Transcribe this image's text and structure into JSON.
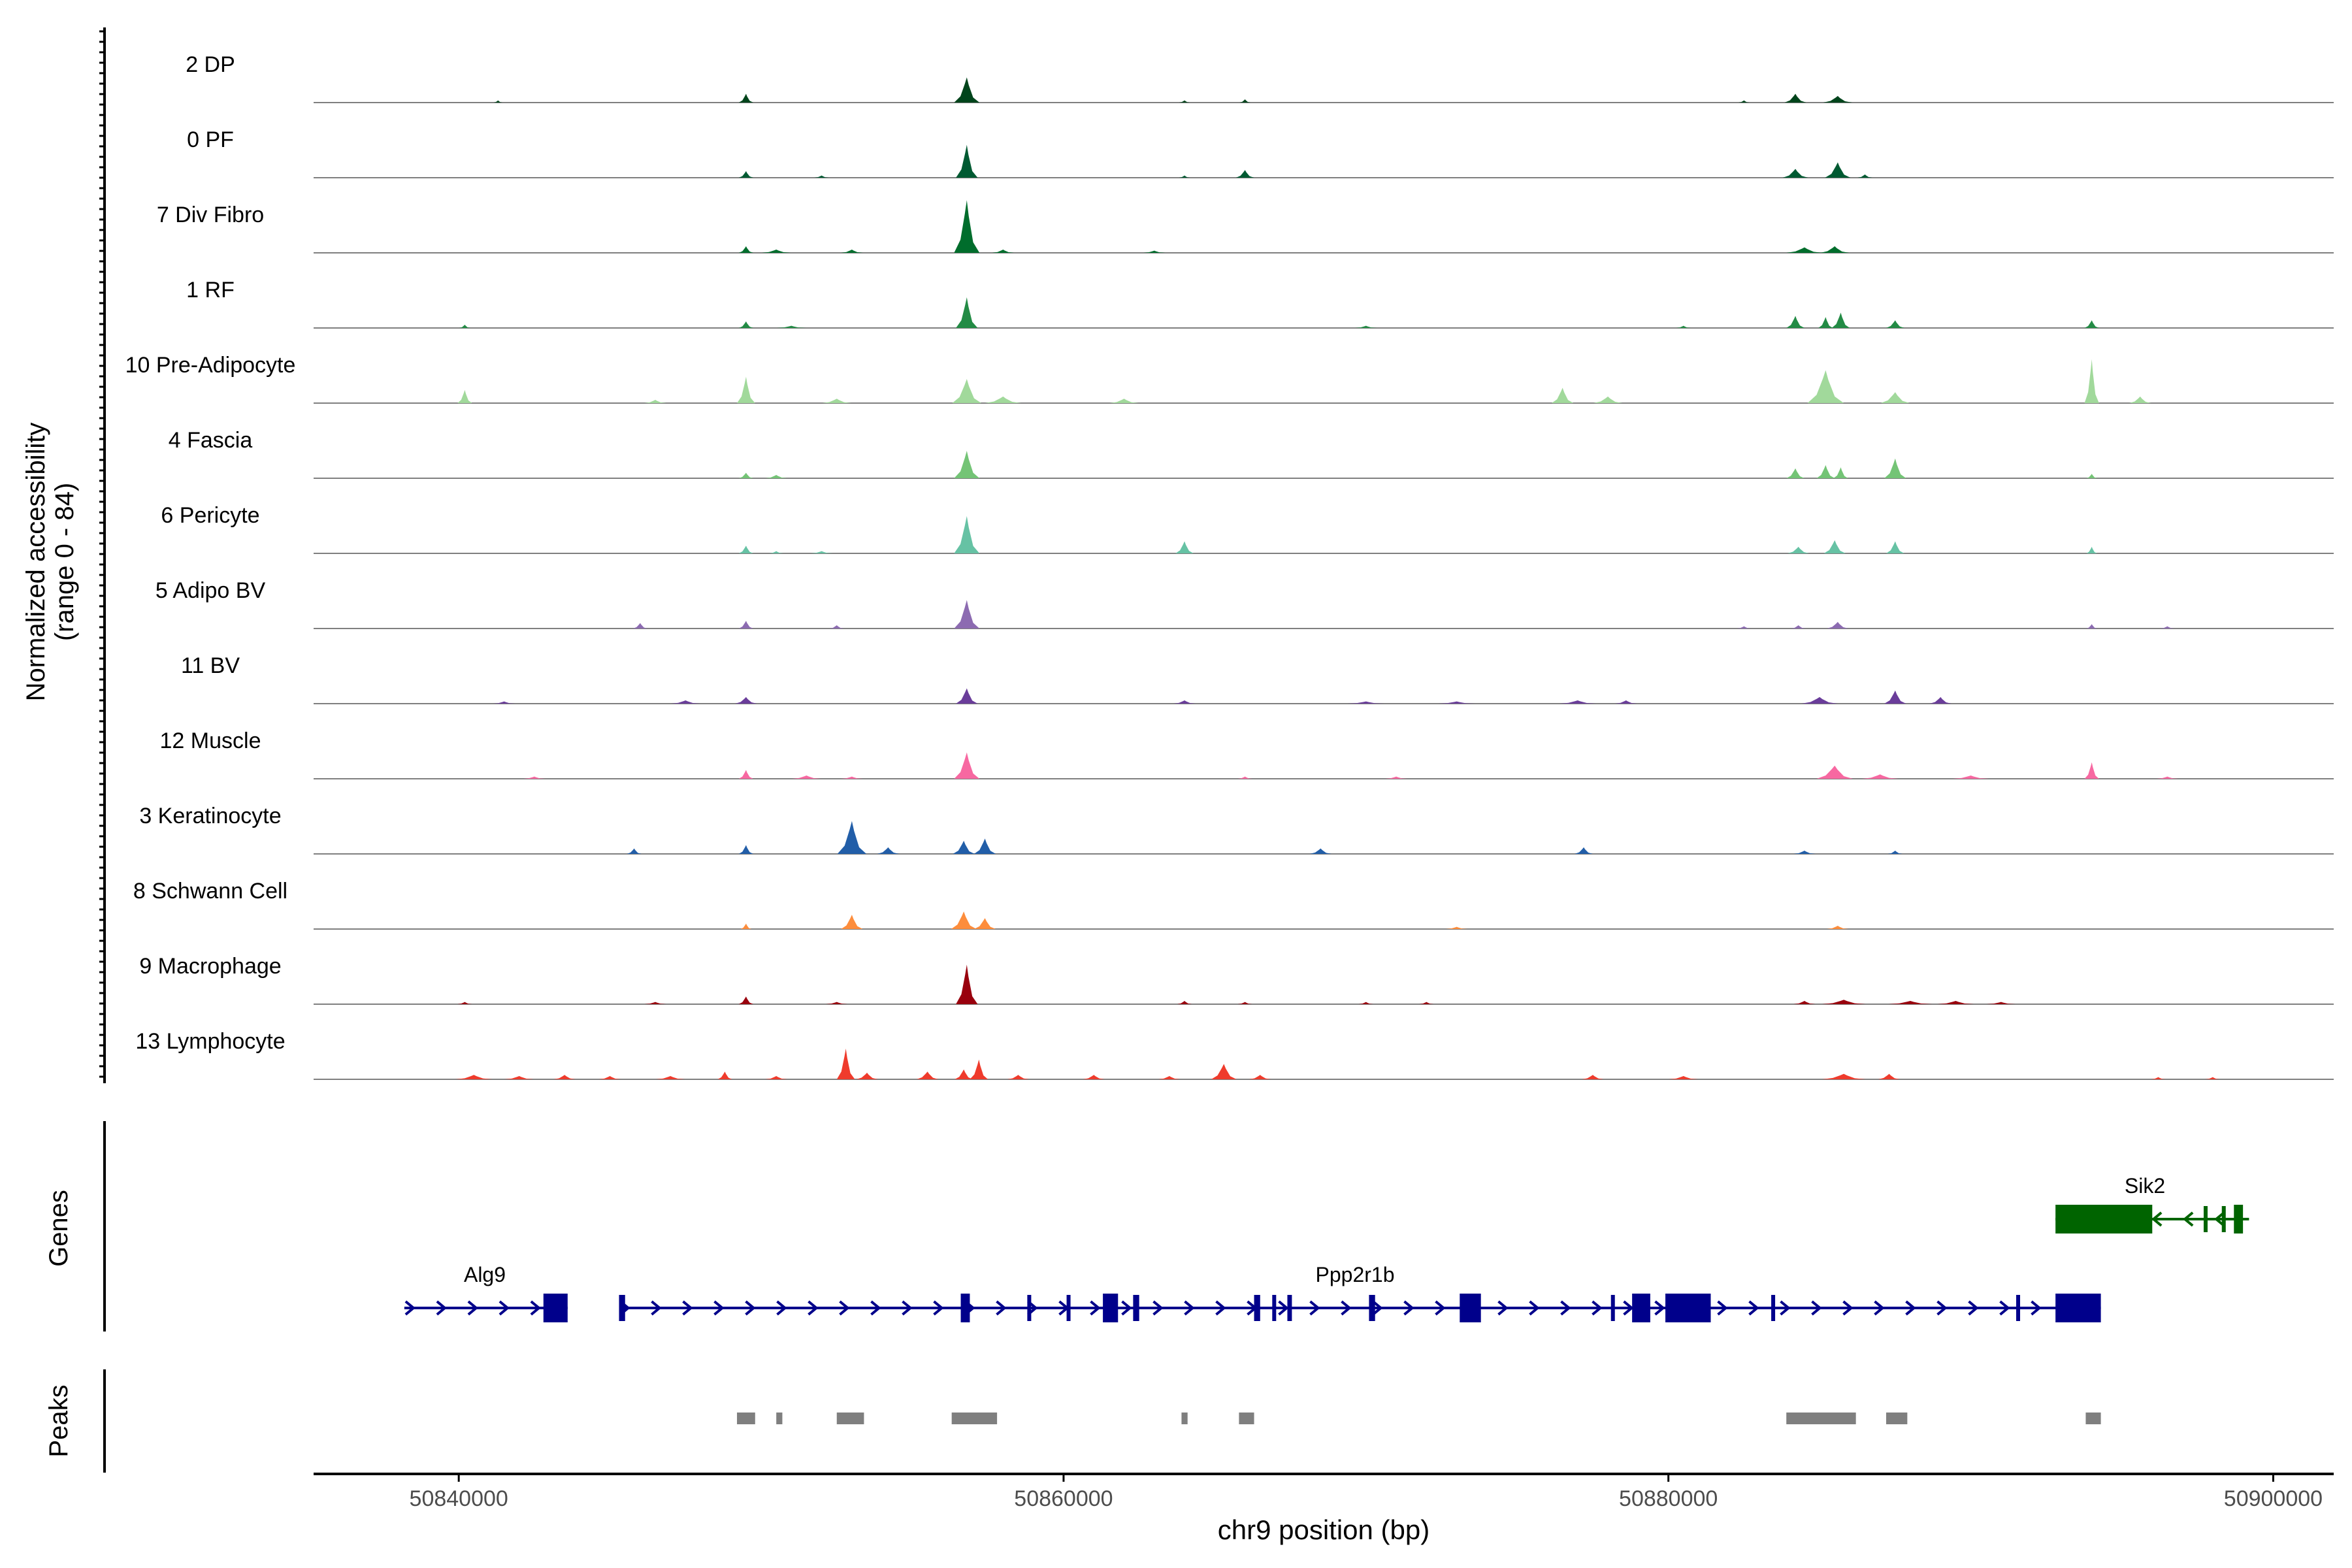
{
  "chart_data": {
    "type": "area",
    "title": "",
    "ylabel_line1": "Normalized accessibility",
    "ylabel_line2": "(range 0 - 84)",
    "ylim": [
      0,
      84
    ],
    "xlabel": "chr9 position (bp)",
    "xlim": [
      50835200,
      50902000
    ],
    "xticks": [
      50840000,
      50860000,
      50880000,
      50900000
    ],
    "xtick_labels": [
      "50840000",
      "50860000",
      "50880000",
      "50900000"
    ],
    "genes_label": "Genes",
    "peaks_label": "Peaks",
    "tracks": [
      {
        "name": "2 DP",
        "color": "#00441b",
        "peaks": [
          [
            50841300,
            2,
            120
          ],
          [
            50849500,
            8,
            200
          ],
          [
            50856800,
            23,
            350
          ],
          [
            50864000,
            2,
            150
          ],
          [
            50866000,
            3,
            150
          ],
          [
            50882500,
            2,
            150
          ],
          [
            50884200,
            8,
            300
          ],
          [
            50885600,
            6,
            400
          ]
        ]
      },
      {
        "name": "0 PF",
        "color": "#005a32",
        "peaks": [
          [
            50849500,
            6,
            200
          ],
          [
            50852000,
            2,
            200
          ],
          [
            50856800,
            30,
            300
          ],
          [
            50864000,
            2,
            150
          ],
          [
            50866000,
            7,
            250
          ],
          [
            50884200,
            8,
            350
          ],
          [
            50885600,
            14,
            350
          ],
          [
            50886500,
            3,
            200
          ]
        ]
      },
      {
        "name": "7 Div Fibro",
        "color": "#006d2c",
        "peaks": [
          [
            50849500,
            6,
            200
          ],
          [
            50850500,
            3,
            400
          ],
          [
            50853000,
            3,
            300
          ],
          [
            50856800,
            48,
            350
          ],
          [
            50858000,
            3,
            300
          ],
          [
            50863000,
            2,
            300
          ],
          [
            50884500,
            5,
            500
          ],
          [
            50885500,
            6,
            400
          ]
        ]
      },
      {
        "name": "1 RF",
        "color": "#238b45",
        "peaks": [
          [
            50840200,
            3,
            150
          ],
          [
            50849500,
            6,
            200
          ],
          [
            50851000,
            2,
            400
          ],
          [
            50856800,
            28,
            300
          ],
          [
            50870000,
            2,
            300
          ],
          [
            50880500,
            2,
            200
          ],
          [
            50884200,
            11,
            250
          ],
          [
            50885200,
            10,
            200
          ],
          [
            50885700,
            14,
            250
          ],
          [
            50887500,
            7,
            250
          ],
          [
            50894000,
            7,
            200
          ]
        ]
      },
      {
        "name": "10 Pre-Adipocyte",
        "color": "#a1d99b",
        "peaks": [
          [
            50840200,
            12,
            200
          ],
          [
            50846500,
            3,
            300
          ],
          [
            50849500,
            24,
            250
          ],
          [
            50852500,
            4,
            400
          ],
          [
            50856800,
            22,
            400
          ],
          [
            50858000,
            6,
            500
          ],
          [
            50862000,
            4,
            400
          ],
          [
            50876500,
            14,
            300
          ],
          [
            50878000,
            6,
            400
          ],
          [
            50885200,
            30,
            500
          ],
          [
            50887500,
            10,
            400
          ],
          [
            50894000,
            40,
            200
          ],
          [
            50895600,
            6,
            300
          ]
        ]
      },
      {
        "name": "4 Fascia",
        "color": "#74c476",
        "peaks": [
          [
            50849500,
            5,
            200
          ],
          [
            50850500,
            3,
            300
          ],
          [
            50856800,
            25,
            350
          ],
          [
            50884200,
            9,
            250
          ],
          [
            50885200,
            12,
            250
          ],
          [
            50885700,
            10,
            200
          ],
          [
            50887500,
            18,
            300
          ],
          [
            50894000,
            4,
            150
          ]
        ]
      },
      {
        "name": "6 Pericyte",
        "color": "#66c2a4",
        "peaks": [
          [
            50849500,
            7,
            200
          ],
          [
            50850500,
            2,
            200
          ],
          [
            50852000,
            2,
            300
          ],
          [
            50856800,
            34,
            350
          ],
          [
            50864000,
            11,
            250
          ],
          [
            50884300,
            6,
            300
          ],
          [
            50885500,
            12,
            300
          ],
          [
            50887500,
            11,
            250
          ],
          [
            50894000,
            6,
            150
          ]
        ]
      },
      {
        "name": "5 Adipo BV",
        "color": "#8c6bb1",
        "peaks": [
          [
            50846000,
            5,
            200
          ],
          [
            50849500,
            7,
            200
          ],
          [
            50852500,
            3,
            200
          ],
          [
            50856800,
            26,
            350
          ],
          [
            50882500,
            2,
            200
          ],
          [
            50884300,
            3,
            200
          ],
          [
            50885600,
            6,
            300
          ],
          [
            50894000,
            4,
            150
          ],
          [
            50896500,
            2,
            200
          ]
        ]
      },
      {
        "name": "11 BV",
        "color": "#6a3d9a",
        "peaks": [
          [
            50841500,
            2,
            300
          ],
          [
            50847500,
            3,
            400
          ],
          [
            50849500,
            6,
            300
          ],
          [
            50856800,
            14,
            300
          ],
          [
            50864000,
            3,
            300
          ],
          [
            50870000,
            2,
            500
          ],
          [
            50873000,
            2,
            500
          ],
          [
            50877000,
            3,
            500
          ],
          [
            50878600,
            3,
            300
          ],
          [
            50885000,
            6,
            500
          ],
          [
            50887500,
            12,
            300
          ],
          [
            50889000,
            6,
            300
          ]
        ]
      },
      {
        "name": "12 Muscle",
        "color": "#f768a1",
        "peaks": [
          [
            50842500,
            2,
            300
          ],
          [
            50849500,
            8,
            200
          ],
          [
            50851500,
            3,
            400
          ],
          [
            50853000,
            2,
            300
          ],
          [
            50856800,
            24,
            350
          ],
          [
            50866000,
            2,
            200
          ],
          [
            50871000,
            2,
            300
          ],
          [
            50885500,
            12,
            500
          ],
          [
            50887000,
            4,
            500
          ],
          [
            50890000,
            3,
            500
          ],
          [
            50894000,
            15,
            200
          ],
          [
            50896500,
            2,
            300
          ]
        ]
      },
      {
        "name": "3 Keratinocyte",
        "color": "#225ea8",
        "peaks": [
          [
            50845800,
            5,
            200
          ],
          [
            50849500,
            8,
            200
          ],
          [
            50853000,
            30,
            400
          ],
          [
            50854200,
            6,
            300
          ],
          [
            50856700,
            12,
            300
          ],
          [
            50857400,
            14,
            300
          ],
          [
            50868500,
            5,
            300
          ],
          [
            50877200,
            6,
            250
          ],
          [
            50884500,
            3,
            300
          ],
          [
            50887500,
            3,
            200
          ]
        ]
      },
      {
        "name": "8 Schwann Cell",
        "color": "#fd8d3c",
        "peaks": [
          [
            50849500,
            5,
            150
          ],
          [
            50853000,
            13,
            300
          ],
          [
            50856700,
            16,
            350
          ],
          [
            50857400,
            10,
            300
          ],
          [
            50873000,
            2,
            300
          ],
          [
            50885600,
            3,
            300
          ]
        ]
      },
      {
        "name": "9 Macrophage",
        "color": "#99000d",
        "peaks": [
          [
            50840200,
            2,
            200
          ],
          [
            50846500,
            2,
            300
          ],
          [
            50849500,
            7,
            200
          ],
          [
            50852500,
            2,
            300
          ],
          [
            50856800,
            36,
            300
          ],
          [
            50864000,
            3,
            200
          ],
          [
            50866000,
            2,
            200
          ],
          [
            50870000,
            2,
            200
          ],
          [
            50872000,
            2,
            200
          ],
          [
            50884500,
            3,
            300
          ],
          [
            50885800,
            4,
            600
          ],
          [
            50888000,
            3,
            600
          ],
          [
            50889500,
            3,
            500
          ],
          [
            50891000,
            2,
            400
          ]
        ]
      },
      {
        "name": "13 Lymphocyte",
        "color": "#ef3b2c",
        "peaks": [
          [
            50840500,
            4,
            500
          ],
          [
            50842000,
            3,
            400
          ],
          [
            50843500,
            4,
            300
          ],
          [
            50845000,
            3,
            300
          ],
          [
            50847000,
            3,
            400
          ],
          [
            50848800,
            7,
            200
          ],
          [
            50850500,
            3,
            300
          ],
          [
            50852800,
            28,
            250
          ],
          [
            50853500,
            6,
            300
          ],
          [
            50855500,
            7,
            300
          ],
          [
            50856700,
            9,
            250
          ],
          [
            50857200,
            18,
            250
          ],
          [
            50858500,
            4,
            300
          ],
          [
            50861000,
            4,
            300
          ],
          [
            50863500,
            3,
            300
          ],
          [
            50865300,
            14,
            350
          ],
          [
            50866500,
            4,
            300
          ],
          [
            50877500,
            4,
            300
          ],
          [
            50880500,
            3,
            400
          ],
          [
            50885800,
            5,
            600
          ],
          [
            50887300,
            5,
            300
          ],
          [
            50896200,
            2,
            200
          ],
          [
            50898000,
            2,
            200
          ]
        ]
      }
    ],
    "genes": [
      {
        "name": "Alg9",
        "strand": "+",
        "color": "#00008b",
        "start": 50838200,
        "end": 50843600,
        "exons": [
          [
            50842800,
            50843600
          ]
        ]
      },
      {
        "name": "Ppp2r1b",
        "strand": "+",
        "color": "#00008b",
        "start": 50845300,
        "end": 50894300,
        "exons": [
          [
            50845300,
            50845500
          ],
          [
            50856600,
            50856900
          ],
          [
            50858800,
            50858900
          ],
          [
            50860100,
            50860150
          ],
          [
            50861300,
            50861800
          ],
          [
            50862300,
            50862500
          ],
          [
            50866300,
            50866500
          ],
          [
            50866900,
            50867000
          ],
          [
            50867400,
            50867550
          ],
          [
            50870100,
            50870300
          ],
          [
            50873100,
            50873800
          ],
          [
            50878100,
            50878200
          ],
          [
            50878800,
            50879400
          ],
          [
            50879900,
            50881400
          ],
          [
            50883400,
            50883500
          ],
          [
            50891500,
            50891600
          ],
          [
            50892800,
            50894300
          ]
        ]
      },
      {
        "name": "Sik2",
        "strand": "-",
        "color": "#006400",
        "start": 50892800,
        "end": 50899200,
        "exons": [
          [
            50892800,
            50896000
          ],
          [
            50897700,
            50897800
          ],
          [
            50898300,
            50898400
          ],
          [
            50898700,
            50899000
          ]
        ]
      }
    ],
    "peak_regions": [
      [
        50849200,
        50849800
      ],
      [
        50850500,
        50850700
      ],
      [
        50852500,
        50853400
      ],
      [
        50856300,
        50857800
      ],
      [
        50863900,
        50864100
      ],
      [
        50865800,
        50866300
      ],
      [
        50883900,
        50886200
      ],
      [
        50887200,
        50887900
      ],
      [
        50893800,
        50894300
      ]
    ]
  }
}
